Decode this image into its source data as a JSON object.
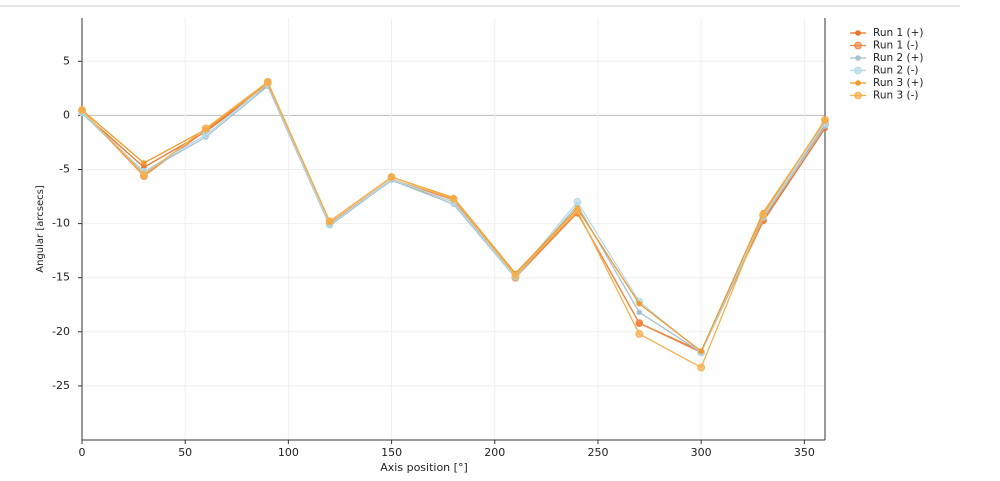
{
  "chart_data": {
    "type": "line",
    "x_label": "Axis position [°]",
    "y_label": "Angular [arcsecs]",
    "x": [
      0,
      30,
      60,
      90,
      120,
      150,
      180,
      210,
      240,
      270,
      300,
      330,
      360
    ],
    "series": [
      {
        "name": "Run 1 (+)",
        "color": "#e8742c",
        "values": [
          0.3,
          -4.8,
          -1.5,
          2.8,
          -10,
          -6,
          -8,
          -14.8,
          -9,
          -19.2,
          -21.8,
          -9.8,
          -1.2
        ]
      },
      {
        "name": "Run 1 (-)",
        "color": "#ef8a48",
        "values": [
          0.4,
          -5.6,
          -1.4,
          3,
          -10,
          -5.9,
          -7.8,
          -15,
          -9,
          -19.2,
          -21.9,
          -9.7,
          -0.8
        ]
      },
      {
        "name": "Run 2 (+)",
        "color": "#a6c2d2",
        "values": [
          0.2,
          -5.3,
          -2,
          2.7,
          -10.2,
          -6,
          -8.2,
          -15,
          -8.3,
          -18.2,
          -21.9,
          -9.5,
          -1
        ]
      },
      {
        "name": "Run 2 (-)",
        "color": "#b5dbe6",
        "values": [
          0.3,
          -5.2,
          -1.8,
          2.9,
          -10.1,
          -5.9,
          -8,
          -14.9,
          -8,
          -17.2,
          -21.9,
          -9.3,
          -0.7
        ]
      },
      {
        "name": "Run 3 (+)",
        "color": "#f09a2c",
        "values": [
          0.5,
          -4.4,
          -1.3,
          3,
          -9.8,
          -5.7,
          -7.6,
          -14.6,
          -8.6,
          -17.4,
          -21.8,
          -9,
          -0.5
        ]
      },
      {
        "name": "Run 3 (-)",
        "color": "#f5b04c",
        "values": [
          0.5,
          -5.5,
          -1.2,
          3.1,
          -9.8,
          -5.7,
          -7.7,
          -14.8,
          -8.8,
          -20.2,
          -23.3,
          -9.2,
          -0.4
        ]
      }
    ],
    "xlim": [
      0,
      360
    ],
    "xticks": [
      0,
      50,
      100,
      150,
      200,
      250,
      300,
      350
    ],
    "ylim": [
      -30,
      9
    ],
    "yticks": [
      -25,
      -20,
      -15,
      -10,
      -5,
      0,
      5
    ],
    "grid": true,
    "legend": "upper right"
  }
}
